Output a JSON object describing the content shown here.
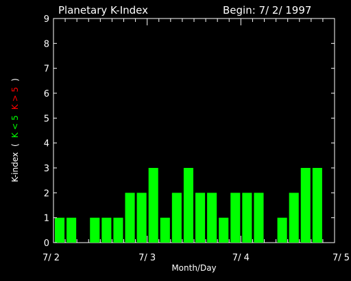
{
  "chart_data": {
    "type": "bar",
    "title": "Planetary K-Index",
    "begin_label": "Begin: 7/ 2/ 1997",
    "xlabel": "Month/Day",
    "ylabel_parts": [
      {
        "text": "K-index",
        "color": "#ffffff"
      },
      {
        "text": "(",
        "color": "#ffffff"
      },
      {
        "text": "K < 5",
        "color": "#00ff00"
      },
      {
        "text": "K > 5",
        "color": "#ff0000"
      },
      {
        "text": ")",
        "color": "#ffffff"
      }
    ],
    "ylim": [
      0,
      9
    ],
    "yticks": [
      "0",
      "1",
      "2",
      "3",
      "4",
      "5",
      "6",
      "7",
      "8",
      "9"
    ],
    "xlim": [
      0,
      24
    ],
    "xticks": [
      {
        "pos": 0,
        "label": "7/ 2"
      },
      {
        "pos": 8,
        "label": "7/ 3"
      },
      {
        "pos": 16,
        "label": "7/ 4"
      },
      {
        "pos": 24,
        "label": "7/ 5"
      }
    ],
    "bar_color": "#00ff00",
    "values": [
      1,
      1,
      0,
      1,
      1,
      1,
      2,
      2,
      3,
      1,
      2,
      3,
      2,
      2,
      1,
      2,
      2,
      2,
      0,
      1,
      2,
      3,
      3,
      0
    ],
    "grid": false
  }
}
